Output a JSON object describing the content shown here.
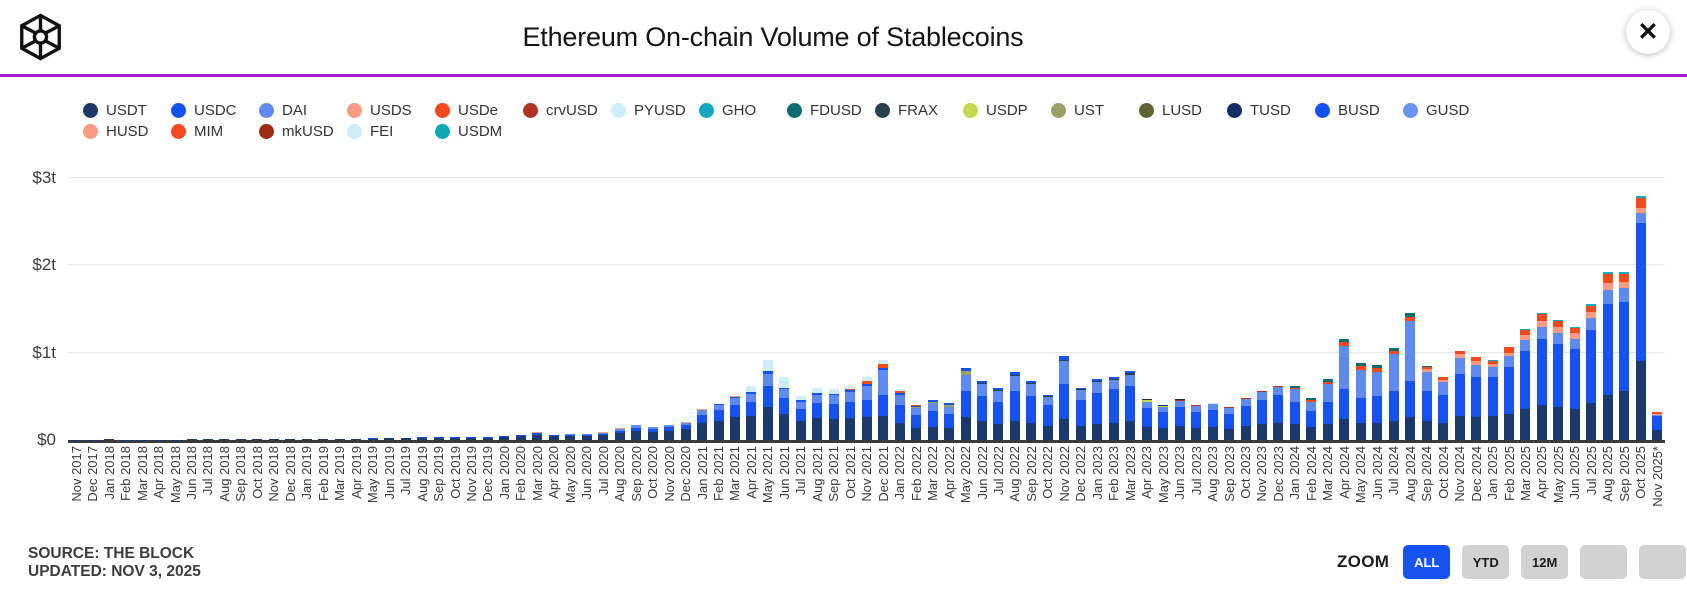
{
  "header": {
    "title": "Ethereum On-chain Volume of Stablecoins",
    "close_glyph": "✕"
  },
  "accent_colors": {
    "divider_purple": "#a81ad8",
    "active_button_blue": "#1652f0"
  },
  "legend": [
    {
      "label": "USDT",
      "color": "#1b3a6b"
    },
    {
      "label": "USDC",
      "color": "#1652f0"
    },
    {
      "label": "DAI",
      "color": "#5f8bee"
    },
    {
      "label": "USDS",
      "color": "#f89a84"
    },
    {
      "label": "USDe",
      "color": "#f4491d"
    },
    {
      "label": "crvUSD",
      "color": "#b13324"
    },
    {
      "label": "PYUSD",
      "color": "#cdeef7"
    },
    {
      "label": "GHO",
      "color": "#16a8c0"
    },
    {
      "label": "FDUSD",
      "color": "#0d6c72"
    },
    {
      "label": "FRAX",
      "color": "#27414d"
    },
    {
      "label": "USDP",
      "color": "#c5d94e"
    },
    {
      "label": "UST",
      "color": "#9aa061"
    },
    {
      "label": "LUSD",
      "color": "#5e6433"
    },
    {
      "label": "TUSD",
      "color": "#132d66"
    },
    {
      "label": "BUSD",
      "color": "#1353ef"
    },
    {
      "label": "GUSD",
      "color": "#6a93f0"
    },
    {
      "label": "HUSD",
      "color": "#f89a84"
    },
    {
      "label": "MIM",
      "color": "#f44a1e"
    },
    {
      "label": "mkUSD",
      "color": "#9c2c12"
    },
    {
      "label": "FEI",
      "color": "#cdeef7"
    },
    {
      "label": "USDM",
      "color": "#0aa8b4"
    }
  ],
  "chart_data": {
    "type": "bar",
    "stacked": true,
    "title": "Ethereum On-chain Volume of Stablecoins",
    "unit": "USD trillions",
    "ylim": [
      0,
      3.1
    ],
    "grid": "horizontal",
    "yticks": [
      {
        "value": 0,
        "label": "$0"
      },
      {
        "value": 1,
        "label": "$1t"
      },
      {
        "value": 2,
        "label": "$2t"
      },
      {
        "value": 3,
        "label": "$3t"
      }
    ],
    "months": [
      {
        "label": "Nov 2017",
        "segments": {
          "USDT": 0.003
        }
      },
      {
        "label": "Dec 2017",
        "segments": {
          "USDT": 0.005
        }
      },
      {
        "label": "Jan 2018",
        "segments": {
          "USDT": 0.006
        }
      },
      {
        "label": "Feb 2018",
        "segments": {
          "USDT": 0.004
        }
      },
      {
        "label": "Mar 2018",
        "segments": {
          "USDT": 0.004
        }
      },
      {
        "label": "Apr 2018",
        "segments": {
          "USDT": 0.004
        }
      },
      {
        "label": "May 2018",
        "segments": {
          "USDT": 0.005
        }
      },
      {
        "label": "Jun 2018",
        "segments": {
          "USDT": 0.006
        }
      },
      {
        "label": "Jul 2018",
        "segments": {
          "USDT": 0.007
        }
      },
      {
        "label": "Aug 2018",
        "segments": {
          "USDT": 0.009
        }
      },
      {
        "label": "Sep 2018",
        "segments": {
          "USDT": 0.01
        }
      },
      {
        "label": "Oct 2018",
        "segments": {
          "USDT": 0.011,
          "USDC": 0.001
        }
      },
      {
        "label": "Nov 2018",
        "segments": {
          "USDT": 0.011,
          "USDC": 0.002
        }
      },
      {
        "label": "Dec 2018",
        "segments": {
          "USDT": 0.011,
          "USDC": 0.002
        }
      },
      {
        "label": "Jan 2019",
        "segments": {
          "USDT": 0.01,
          "USDC": 0.002
        }
      },
      {
        "label": "Feb 2019",
        "segments": {
          "USDT": 0.01,
          "USDC": 0.002
        }
      },
      {
        "label": "Mar 2019",
        "segments": {
          "USDT": 0.011,
          "USDC": 0.003
        }
      },
      {
        "label": "Apr 2019",
        "segments": {
          "USDT": 0.013,
          "USDC": 0.003
        }
      },
      {
        "label": "May 2019",
        "segments": {
          "USDT": 0.015,
          "USDC": 0.004
        }
      },
      {
        "label": "Jun 2019",
        "segments": {
          "USDT": 0.018,
          "USDC": 0.004,
          "USDP": 0.002
        }
      },
      {
        "label": "Jul 2019",
        "segments": {
          "USDT": 0.022,
          "USDC": 0.005,
          "DAI": 0.002
        }
      },
      {
        "label": "Aug 2019",
        "segments": {
          "USDT": 0.024,
          "USDC": 0.005,
          "DAI": 0.002
        }
      },
      {
        "label": "Sep 2019",
        "segments": {
          "USDT": 0.026,
          "USDC": 0.006,
          "DAI": 0.002
        }
      },
      {
        "label": "Oct 2019",
        "segments": {
          "USDT": 0.028,
          "USDC": 0.006,
          "DAI": 0.003
        }
      },
      {
        "label": "Nov 2019",
        "segments": {
          "USDT": 0.028,
          "USDC": 0.007,
          "DAI": 0.003
        }
      },
      {
        "label": "Dec 2019",
        "segments": {
          "USDT": 0.026,
          "USDC": 0.007,
          "DAI": 0.003
        }
      },
      {
        "label": "Jan 2020",
        "segments": {
          "USDT": 0.036,
          "USDC": 0.008,
          "DAI": 0.004,
          "HUSD": 0.004
        }
      },
      {
        "label": "Feb 2020",
        "segments": {
          "USDT": 0.042,
          "USDC": 0.01,
          "DAI": 0.005,
          "HUSD": 0.005
        }
      },
      {
        "label": "Mar 2020",
        "segments": {
          "USDT": 0.062,
          "USDC": 0.014,
          "DAI": 0.006,
          "HUSD": 0.008
        }
      },
      {
        "label": "Apr 2020",
        "segments": {
          "USDT": 0.042,
          "USDC": 0.01,
          "DAI": 0.005,
          "HUSD": 0.004
        }
      },
      {
        "label": "May 2020",
        "segments": {
          "USDT": 0.046,
          "USDC": 0.012,
          "DAI": 0.006,
          "HUSD": 0.004
        }
      },
      {
        "label": "Jun 2020",
        "segments": {
          "USDT": 0.044,
          "USDC": 0.012,
          "DAI": 0.008,
          "HUSD": 0.004
        }
      },
      {
        "label": "Jul 2020",
        "segments": {
          "USDT": 0.054,
          "USDC": 0.016,
          "DAI": 0.012,
          "HUSD": 0.005
        }
      },
      {
        "label": "Aug 2020",
        "segments": {
          "USDT": 0.08,
          "USDC": 0.026,
          "DAI": 0.02,
          "HUSD": 0.006
        }
      },
      {
        "label": "Sep 2020",
        "segments": {
          "USDT": 0.105,
          "USDC": 0.036,
          "DAI": 0.026,
          "HUSD": 0.006
        }
      },
      {
        "label": "Oct 2020",
        "segments": {
          "USDT": 0.092,
          "USDC": 0.032,
          "DAI": 0.02,
          "HUSD": 0.005
        }
      },
      {
        "label": "Nov 2020",
        "segments": {
          "USDT": 0.105,
          "USDC": 0.04,
          "DAI": 0.022,
          "HUSD": 0.005
        }
      },
      {
        "label": "Dec 2020",
        "segments": {
          "USDT": 0.125,
          "USDC": 0.048,
          "DAI": 0.025,
          "HUSD": 0.005
        }
      },
      {
        "label": "Jan 2021",
        "segments": {
          "USDT": 0.19,
          "USDC": 0.1,
          "DAI": 0.05,
          "BUSD": 0.008,
          "HUSD": 0.008
        }
      },
      {
        "label": "Feb 2021",
        "segments": {
          "USDT": 0.22,
          "USDC": 0.12,
          "DAI": 0.06,
          "BUSD": 0.01,
          "HUSD": 0.006
        }
      },
      {
        "label": "Mar 2021",
        "segments": {
          "USDT": 0.26,
          "USDC": 0.14,
          "DAI": 0.08,
          "BUSD": 0.015,
          "HUSD": 0.005
        }
      },
      {
        "label": "Apr 2021",
        "segments": {
          "USDT": 0.28,
          "USDC": 0.16,
          "DAI": 0.09,
          "BUSD": 0.02,
          "FEI": 0.07
        }
      },
      {
        "label": "May 2021",
        "segments": {
          "USDT": 0.38,
          "USDC": 0.24,
          "DAI": 0.14,
          "BUSD": 0.03,
          "MIM": 0.005,
          "FEI": 0.12
        }
      },
      {
        "label": "Jun 2021",
        "segments": {
          "USDT": 0.3,
          "USDC": 0.18,
          "DAI": 0.1,
          "BUSD": 0.02,
          "FEI": 0.12
        }
      },
      {
        "label": "Jul 2021",
        "segments": {
          "USDT": 0.22,
          "USDC": 0.14,
          "DAI": 0.08,
          "BUSD": 0.015,
          "FEI": 0.05
        }
      },
      {
        "label": "Aug 2021",
        "segments": {
          "USDT": 0.25,
          "USDC": 0.17,
          "DAI": 0.1,
          "BUSD": 0.02,
          "FEI": 0.06
        }
      },
      {
        "label": "Sep 2021",
        "segments": {
          "USDT": 0.24,
          "USDC": 0.17,
          "DAI": 0.1,
          "BUSD": 0.02,
          "FEI": 0.05
        }
      },
      {
        "label": "Oct 2021",
        "segments": {
          "USDT": 0.25,
          "USDC": 0.18,
          "DAI": 0.12,
          "BUSD": 0.02,
          "MIM": 0.01,
          "FEI": 0.04
        }
      },
      {
        "label": "Nov 2021",
        "segments": {
          "USDT": 0.26,
          "USDC": 0.2,
          "DAI": 0.16,
          "BUSD": 0.025,
          "MIM": 0.03,
          "FEI": 0.05
        }
      },
      {
        "label": "Dec 2021",
        "segments": {
          "USDT": 0.28,
          "USDC": 0.24,
          "DAI": 0.28,
          "BUSD": 0.03,
          "MIM": 0.04,
          "FEI": 0.05
        }
      },
      {
        "label": "Jan 2022",
        "segments": {
          "USDT": 0.2,
          "USDC": 0.2,
          "DAI": 0.12,
          "BUSD": 0.015,
          "MIM": 0.03,
          "FEI": 0.02
        }
      },
      {
        "label": "Feb 2022",
        "segments": {
          "USDT": 0.14,
          "USDC": 0.15,
          "DAI": 0.08,
          "UST": 0.01,
          "BUSD": 0.01,
          "MIM": 0.01
        }
      },
      {
        "label": "Mar 2022",
        "segments": {
          "USDT": 0.15,
          "USDC": 0.18,
          "DAI": 0.09,
          "UST": 0.02,
          "BUSD": 0.02
        }
      },
      {
        "label": "Apr 2022",
        "segments": {
          "USDT": 0.14,
          "USDC": 0.16,
          "DAI": 0.08,
          "UST": 0.02,
          "BUSD": 0.02
        }
      },
      {
        "label": "May 2022",
        "segments": {
          "USDT": 0.26,
          "USDC": 0.3,
          "DAI": 0.18,
          "FRAX": 0.01,
          "UST": 0.04,
          "BUSD": 0.03
        }
      },
      {
        "label": "Jun 2022",
        "segments": {
          "USDT": 0.22,
          "USDC": 0.28,
          "DAI": 0.14,
          "FRAX": 0.01,
          "BUSD": 0.03
        }
      },
      {
        "label": "Jul 2022",
        "segments": {
          "USDT": 0.18,
          "USDC": 0.26,
          "DAI": 0.12,
          "FRAX": 0.01,
          "BUSD": 0.03
        }
      },
      {
        "label": "Aug 2022",
        "segments": {
          "USDT": 0.22,
          "USDC": 0.34,
          "DAI": 0.17,
          "FRAX": 0.012,
          "BUSD": 0.04
        }
      },
      {
        "label": "Sep 2022",
        "segments": {
          "USDT": 0.2,
          "USDC": 0.3,
          "DAI": 0.14,
          "FRAX": 0.01,
          "BUSD": 0.03
        }
      },
      {
        "label": "Oct 2022",
        "segments": {
          "USDT": 0.16,
          "USDC": 0.24,
          "DAI": 0.09,
          "FRAX": 0.01,
          "BUSD": 0.02
        }
      },
      {
        "label": "Nov 2022",
        "segments": {
          "USDT": 0.24,
          "USDC": 0.4,
          "DAI": 0.26,
          "FRAX": 0.02,
          "BUSD": 0.04
        }
      },
      {
        "label": "Dec 2022",
        "segments": {
          "USDT": 0.16,
          "USDC": 0.3,
          "DAI": 0.11,
          "FRAX": 0.01,
          "BUSD": 0.02
        }
      },
      {
        "label": "Jan 2023",
        "segments": {
          "USDT": 0.18,
          "USDC": 0.36,
          "DAI": 0.12,
          "FRAX": 0.012,
          "BUSD": 0.03
        }
      },
      {
        "label": "Feb 2023",
        "segments": {
          "USDT": 0.2,
          "USDC": 0.38,
          "DAI": 0.11,
          "FRAX": 0.01,
          "BUSD": 0.02
        }
      },
      {
        "label": "Mar 2023",
        "segments": {
          "USDT": 0.22,
          "USDC": 0.4,
          "DAI": 0.13,
          "FRAX": 0.012,
          "TUSD": 0.01,
          "BUSD": 0.02
        }
      },
      {
        "label": "Apr 2023",
        "segments": {
          "USDT": 0.15,
          "USDC": 0.22,
          "DAI": 0.07,
          "USDP": 0.015,
          "TUSD": 0.01
        }
      },
      {
        "label": "May 2023",
        "segments": {
          "USDT": 0.14,
          "USDC": 0.18,
          "DAI": 0.06,
          "USDP": 0.015,
          "TUSD": 0.008
        }
      },
      {
        "label": "Jun 2023",
        "segments": {
          "USDT": 0.16,
          "USDC": 0.22,
          "DAI": 0.07,
          "crvUSD": 0.008,
          "TUSD": 0.008
        }
      },
      {
        "label": "Jul 2023",
        "segments": {
          "USDT": 0.14,
          "USDC": 0.18,
          "DAI": 0.07,
          "crvUSD": 0.008
        }
      },
      {
        "label": "Aug 2023",
        "segments": {
          "USDT": 0.15,
          "USDC": 0.19,
          "DAI": 0.07,
          "crvUSD": 0.008,
          "PYUSD": 0.004
        }
      },
      {
        "label": "Sep 2023",
        "segments": {
          "USDT": 0.13,
          "USDC": 0.17,
          "DAI": 0.07,
          "crvUSD": 0.006,
          "PYUSD": 0.004
        }
      },
      {
        "label": "Oct 2023",
        "segments": {
          "USDT": 0.16,
          "USDC": 0.23,
          "DAI": 0.08,
          "crvUSD": 0.006,
          "PYUSD": 0.005
        }
      },
      {
        "label": "Nov 2023",
        "segments": {
          "USDT": 0.18,
          "USDC": 0.28,
          "DAI": 0.09,
          "crvUSD": 0.006,
          "PYUSD": 0.006
        }
      },
      {
        "label": "Dec 2023",
        "segments": {
          "USDT": 0.2,
          "USDC": 0.31,
          "DAI": 0.1,
          "crvUSD": 0.006,
          "PYUSD": 0.006
        }
      },
      {
        "label": "Jan 2024",
        "segments": {
          "USDT": 0.18,
          "USDC": 0.26,
          "DAI": 0.14,
          "USDe": 0.02,
          "FDUSD": 0.02
        }
      },
      {
        "label": "Feb 2024",
        "segments": {
          "USDT": 0.15,
          "USDC": 0.18,
          "DAI": 0.11,
          "USDe": 0.02,
          "FDUSD": 0.02
        }
      },
      {
        "label": "Mar 2024",
        "segments": {
          "USDT": 0.18,
          "USDC": 0.26,
          "DAI": 0.2,
          "USDe": 0.03,
          "FDUSD": 0.03
        }
      },
      {
        "label": "Apr 2024",
        "segments": {
          "USDT": 0.24,
          "USDC": 0.34,
          "DAI": 0.5,
          "USDe": 0.04,
          "FDUSD": 0.04
        }
      },
      {
        "label": "May 2024",
        "segments": {
          "USDT": 0.2,
          "USDC": 0.28,
          "DAI": 0.32,
          "USDe": 0.05,
          "FDUSD": 0.03
        }
      },
      {
        "label": "Jun 2024",
        "segments": {
          "USDT": 0.2,
          "USDC": 0.3,
          "DAI": 0.28,
          "USDe": 0.05,
          "FDUSD": 0.03
        }
      },
      {
        "label": "Jul 2024",
        "segments": {
          "USDT": 0.22,
          "USDC": 0.34,
          "DAI": 0.42,
          "USDe": 0.04,
          "FDUSD": 0.03
        }
      },
      {
        "label": "Aug 2024",
        "segments": {
          "USDT": 0.26,
          "USDC": 0.42,
          "DAI": 0.68,
          "USDe": 0.05,
          "FDUSD": 0.04
        }
      },
      {
        "label": "Sep 2024",
        "segments": {
          "USDT": 0.22,
          "USDC": 0.34,
          "DAI": 0.22,
          "USDS": 0.03,
          "USDe": 0.03,
          "FDUSD": 0.01
        }
      },
      {
        "label": "Oct 2024",
        "segments": {
          "USDT": 0.2,
          "USDC": 0.32,
          "DAI": 0.14,
          "USDS": 0.03,
          "USDe": 0.03
        }
      },
      {
        "label": "Nov 2024",
        "segments": {
          "USDT": 0.28,
          "USDC": 0.48,
          "DAI": 0.18,
          "USDS": 0.04,
          "USDe": 0.04
        }
      },
      {
        "label": "Dec 2024",
        "segments": {
          "USDT": 0.26,
          "USDC": 0.46,
          "DAI": 0.14,
          "USDS": 0.04,
          "USDe": 0.05
        }
      },
      {
        "label": "Jan 2025",
        "segments": {
          "USDT": 0.28,
          "USDC": 0.44,
          "DAI": 0.12,
          "USDS": 0.03,
          "USDe": 0.04,
          "GHO": 0.01
        }
      },
      {
        "label": "Feb 2025",
        "segments": {
          "USDT": 0.3,
          "USDC": 0.54,
          "DAI": 0.12,
          "USDS": 0.04,
          "USDe": 0.06,
          "GHO": 0.01
        }
      },
      {
        "label": "Mar 2025",
        "segments": {
          "USDT": 0.36,
          "USDC": 0.66,
          "DAI": 0.13,
          "USDS": 0.05,
          "USDe": 0.06,
          "GHO": 0.01
        }
      },
      {
        "label": "Apr 2025",
        "segments": {
          "USDT": 0.4,
          "USDC": 0.76,
          "DAI": 0.14,
          "USDS": 0.06,
          "USDe": 0.08,
          "GHO": 0.02
        }
      },
      {
        "label": "May 2025",
        "segments": {
          "USDT": 0.38,
          "USDC": 0.72,
          "DAI": 0.13,
          "USDS": 0.06,
          "USDe": 0.07,
          "GHO": 0.02
        }
      },
      {
        "label": "Jun 2025",
        "segments": {
          "USDT": 0.36,
          "USDC": 0.68,
          "DAI": 0.12,
          "USDS": 0.06,
          "USDe": 0.06,
          "GHO": 0.02
        }
      },
      {
        "label": "Jul 2025",
        "segments": {
          "USDT": 0.42,
          "USDC": 0.84,
          "DAI": 0.14,
          "USDS": 0.07,
          "USDe": 0.07,
          "GHO": 0.02
        }
      },
      {
        "label": "Aug 2025",
        "segments": {
          "USDT": 0.52,
          "USDC": 1.04,
          "DAI": 0.16,
          "USDS": 0.08,
          "USDe": 0.1,
          "GHO": 0.02
        }
      },
      {
        "label": "Sep 2025",
        "segments": {
          "USDT": 0.56,
          "USDC": 1.02,
          "DAI": 0.16,
          "USDS": 0.07,
          "USDe": 0.09,
          "GHO": 0.02
        }
      },
      {
        "label": "Oct 2025",
        "segments": {
          "USDT": 0.9,
          "USDC": 1.58,
          "DAI": 0.12,
          "USDS": 0.06,
          "USDe": 0.11,
          "GHO": 0.03
        }
      },
      {
        "label": "Nov 2025*",
        "segments": {
          "USDT": 0.12,
          "USDC": 0.15,
          "DAI": 0.02,
          "USDS": 0.01,
          "USDe": 0.02
        }
      }
    ]
  },
  "footer": {
    "source": "SOURCE: THE BLOCK",
    "updated": "UPDATED: NOV 3, 2025",
    "zoom_label": "ZOOM",
    "zoom_buttons": [
      {
        "label": "ALL",
        "active": true
      },
      {
        "label": "YTD",
        "active": false
      },
      {
        "label": "12M",
        "active": false
      },
      {
        "label": "",
        "active": false
      },
      {
        "label": "",
        "active": false
      }
    ]
  }
}
